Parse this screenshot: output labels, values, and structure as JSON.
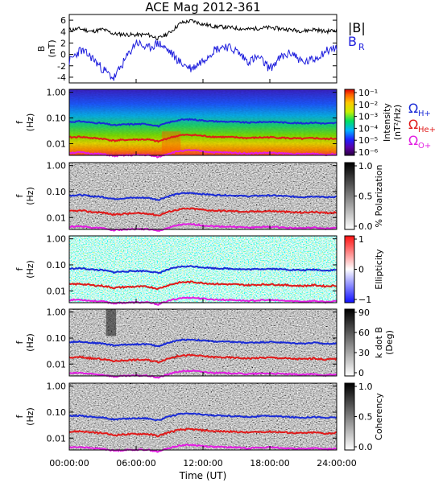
{
  "figure": {
    "title": "ACE Mag 2012-361",
    "xlabel": "Time (UT)",
    "xticks": [
      "00:00:00",
      "06:00:00",
      "12:00:00",
      "18:00:00",
      "24:00:00"
    ]
  },
  "legends": {
    "b_total": "|B|",
    "b_r_main": "B",
    "b_r_sub": "R",
    "omega_h_main": "Ω",
    "omega_h_sub": "H+",
    "omega_he_main": "Ω",
    "omega_he_sub": "He+",
    "omega_o_main": "Ω",
    "omega_o_sub": "O+"
  },
  "colors": {
    "b_total": "#000000",
    "b_r": "#1f1fdd",
    "omega_h": "#1a2bd6",
    "omega_he": "#e01a1a",
    "omega_o": "#e21ee2"
  },
  "chart_data": [
    {
      "type": "line",
      "panel": "field",
      "title": "ACE Mag 2012-361",
      "ylabel": "B",
      "yunit": "(nT)",
      "ylim": [
        -5,
        7
      ],
      "yticks": [
        "6",
        "4",
        "2",
        "0",
        "-2",
        "-4"
      ],
      "x": [
        0,
        1,
        2,
        3,
        4,
        5,
        6,
        7,
        8,
        9,
        10,
        11,
        12,
        13,
        14,
        15,
        16,
        17,
        18,
        19,
        20,
        21,
        22,
        23,
        24
      ],
      "series": [
        {
          "name": "|B|",
          "values": [
            4.3,
            4.5,
            4.0,
            4.4,
            3.6,
            3.5,
            3.4,
            3.5,
            2.8,
            3.8,
            5.5,
            5.9,
            5.3,
            4.9,
            4.8,
            4.6,
            4.4,
            4.6,
            4.7,
            4.5,
            4.3,
            4.1,
            4.4,
            4.0,
            4.3
          ]
        },
        {
          "name": "B_R",
          "values": [
            -1.2,
            0.8,
            -0.5,
            -2.6,
            -4.2,
            -1.0,
            2.2,
            1.0,
            2.0,
            0.5,
            -1.5,
            -2.5,
            -1.0,
            0.8,
            1.5,
            0.6,
            -1.2,
            -0.5,
            -2.5,
            -0.5,
            0.3,
            -1.5,
            -0.8,
            0.6,
            1.2
          ]
        }
      ]
    },
    {
      "type": "heatmap",
      "panel": "intensity",
      "ylabel": "f",
      "yunit": "(Hz)",
      "yticks": [
        "1.00",
        "0.10",
        "0.01"
      ],
      "colorbar_label": "Intensity",
      "colorbar_unit": "(nT²/Hz)",
      "colorbar_ticks": [
        "10⁻¹",
        "10⁻²",
        "10⁻³",
        "10⁻⁴",
        "10⁻⁵",
        "10⁻⁶"
      ],
      "series": [
        {
          "name": "ΩH+",
          "values": [
            0.07,
            0.074,
            0.066,
            0.062,
            0.052,
            0.056,
            0.058,
            0.058,
            0.048,
            0.068,
            0.085,
            0.088,
            0.08,
            0.074,
            0.072,
            0.07,
            0.066,
            0.069,
            0.071,
            0.068,
            0.064,
            0.062,
            0.066,
            0.06,
            0.064
          ]
        },
        {
          "name": "ΩHe+",
          "values": [
            0.0175,
            0.0185,
            0.0165,
            0.0155,
            0.013,
            0.014,
            0.0145,
            0.0145,
            0.012,
            0.017,
            0.0212,
            0.022,
            0.02,
            0.0185,
            0.018,
            0.0175,
            0.0165,
            0.0172,
            0.0178,
            0.017,
            0.016,
            0.0155,
            0.0165,
            0.015,
            0.016
          ]
        },
        {
          "name": "ΩO+",
          "values": [
            0.0044,
            0.0046,
            0.0041,
            0.0039,
            0.0033,
            0.0035,
            0.0036,
            0.0036,
            0.003,
            0.0042,
            0.0053,
            0.0055,
            0.005,
            0.0046,
            0.0045,
            0.0044,
            0.0041,
            0.0043,
            0.0044,
            0.0042,
            0.004,
            0.0039,
            0.0041,
            0.0037,
            0.004
          ]
        }
      ]
    },
    {
      "type": "heatmap",
      "panel": "polarization",
      "ylabel": "f",
      "yunit": "(Hz)",
      "yticks": [
        "1.00",
        "0.10",
        "0.01"
      ],
      "colorbar_label": "% Polarization",
      "colorbar_ticks": [
        "1.0",
        "0.5",
        "0.0"
      ]
    },
    {
      "type": "heatmap",
      "panel": "ellipticity",
      "ylabel": "f",
      "yunit": "(Hz)",
      "yticks": [
        "1.00",
        "0.10",
        "0.01"
      ],
      "colorbar_label": "Ellipticity",
      "colorbar_ticks": [
        "1",
        "0",
        "−1"
      ]
    },
    {
      "type": "heatmap",
      "panel": "kdotb",
      "ylabel": "f",
      "yunit": "(Hz)",
      "yticks": [
        "1.00",
        "0.10",
        "0.01"
      ],
      "colorbar_label": "k dot B",
      "colorbar_unit": "(Deg)",
      "colorbar_ticks": [
        "90",
        "60",
        "30",
        "0"
      ]
    },
    {
      "type": "heatmap",
      "panel": "coherency",
      "ylabel": "f",
      "yunit": "(Hz)",
      "yticks": [
        "1.00",
        "0.10",
        "0.01"
      ],
      "colorbar_label": "Coherency",
      "colorbar_ticks": [
        "1.0",
        "0.5",
        "0.0"
      ]
    }
  ]
}
